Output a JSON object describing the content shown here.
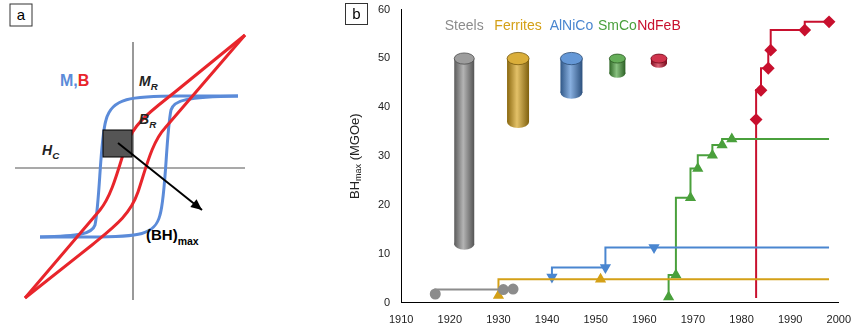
{
  "chart_data": {
    "type": "line",
    "panel_label": "b",
    "y_label": {
      "text": "BH",
      "sub": "max",
      "after": " (MGOe)"
    },
    "xlim": [
      1910,
      2000
    ],
    "xticks": [
      1910,
      1920,
      1930,
      1940,
      1950,
      1960,
      1970,
      1980,
      1990,
      2000
    ],
    "ylim": [
      0,
      60
    ],
    "yticks": [
      0,
      10,
      20,
      30,
      40,
      50,
      60
    ],
    "grid": false,
    "line_style": "steps",
    "series": [
      {
        "name": "Steels",
        "color": "#8c8c8c",
        "marker": "circle",
        "x": [
          1917,
          1931,
          1933
        ],
        "values": [
          1.8,
          2.7,
          2.8
        ]
      },
      {
        "name": "Ferrites",
        "color": "#d4a017",
        "marker": "triangle",
        "x": [
          1930,
          1951,
          1998
        ],
        "values": [
          1.5,
          4.8,
          4.8
        ]
      },
      {
        "name": "AlNiCo",
        "color": "#4a86d0",
        "marker": "triangle_down",
        "x": [
          1941,
          1952,
          1962,
          1998
        ],
        "values": [
          5.3,
          7.2,
          11.3,
          11.3
        ]
      },
      {
        "name": "SmCo",
        "color": "#4aa03c",
        "marker": "triangle",
        "x": [
          1965,
          1966.5,
          1969.5,
          1971,
          1974,
          1976,
          1978,
          1998
        ],
        "values": [
          1.2,
          5.7,
          21.5,
          27.5,
          30.2,
          32.3,
          33.5,
          33.5
        ]
      },
      {
        "name": "NdFeB",
        "color": "#c8102e",
        "marker": "diamond",
        "x": [
          1983,
          1983,
          1984,
          1985.5,
          1986,
          1993,
          1998
        ],
        "values": [
          1,
          37.5,
          43.5,
          48,
          51.7,
          55.8,
          57.5
        ]
      }
    ]
  },
  "diagram": {
    "panel_label": "a",
    "curve_label": "M,B",
    "curves": [
      {
        "name": "M",
        "color": "#5b8bd9"
      },
      {
        "name": "B",
        "color": "#e8252b"
      }
    ],
    "labels": {
      "remanent_magnetization": {
        "text": "M",
        "sub": "R"
      },
      "remanence": {
        "text": "B",
        "sub": "R"
      },
      "coercivity": {
        "text": "H",
        "sub": "C"
      },
      "energy_product": {
        "text": "(BH)",
        "sub": "max"
      }
    }
  }
}
